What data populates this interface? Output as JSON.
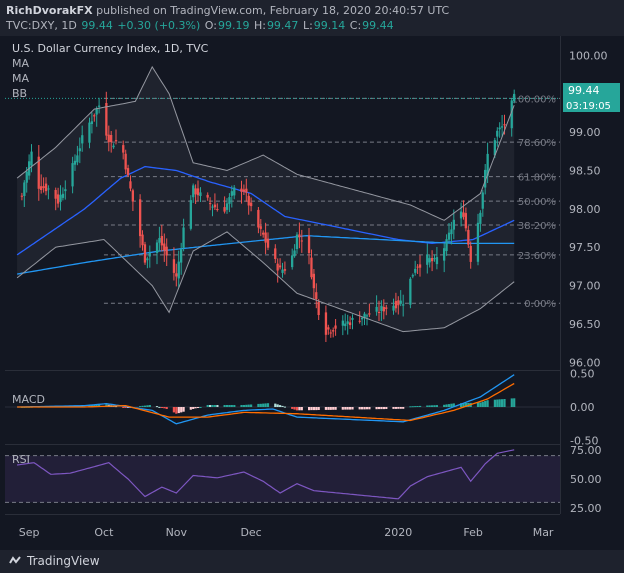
{
  "header": {
    "author": "RichDvorakFX",
    "published_text": "published on TradingView.com, February 18, 2020 20:40:57 UTC",
    "symbol": "TVC:DXY, 1D",
    "last": "99.44",
    "change": "+0.30 (+0.3%)",
    "o_label": "O:",
    "o_value": "99.19",
    "h_label": "H:",
    "h_value": "99.47",
    "l_label": "L:",
    "l_value": "99.14",
    "c_label": "C:",
    "c_value": "99.44"
  },
  "legend": {
    "title": "U.S. Dollar Currency Index, 1D, TVC",
    "indicators": [
      "MA",
      "MA",
      "BB"
    ]
  },
  "price_scale": {
    "ticks": [
      "100.00",
      "99.50",
      "99.00",
      "98.50",
      "98.00",
      "97.50",
      "97.00",
      "96.50",
      "96.00"
    ],
    "last_price_label": "99.44",
    "countdown_label": "03:19:05"
  },
  "fib_labels": [
    "100.00%",
    "78.60%",
    "61.80%",
    "50.00%",
    "38.20%",
    "23.60%",
    "0.00%"
  ],
  "macd": {
    "label": "MACD",
    "ticks": [
      "0.50",
      "0.00",
      "-0.50"
    ]
  },
  "rsi": {
    "label": "RSI",
    "ticks": [
      "75.00",
      "50.00",
      "25.00"
    ]
  },
  "time_axis": {
    "labels": [
      "Sep",
      "Oct",
      "Nov",
      "Dec",
      "2020",
      "Feb",
      "Mar"
    ]
  },
  "footer": {
    "brand": "TradingView"
  },
  "colors": {
    "background": "#131722",
    "panel": "#1e222d",
    "up": "#26a69a",
    "down": "#ef5350",
    "ma_fast": "#2962ff",
    "ma_slow": "#2196f3",
    "bollinger": "#9598a1",
    "macd_line": "#2196f3",
    "signal_line": "#ff6d00",
    "rsi_line": "#7e57c2",
    "rsi_band": "#7e57c2",
    "last_price": "#26a69a"
  },
  "chart_data": {
    "type": "candlestick",
    "title": "U.S. Dollar Currency Index, 1D, TVC",
    "x": [
      "Sep",
      "Oct",
      "Nov",
      "Dec",
      "2020",
      "Feb",
      "Mar"
    ],
    "ylim": [
      95.9,
      100.2
    ],
    "close_anchors": [
      [
        "Aug 27",
        97.8
      ],
      [
        "Aug 30",
        98.35
      ],
      [
        "Sep 3",
        98.85
      ],
      [
        "Sep 5",
        98.3
      ],
      [
        "Sep 10",
        98.25
      ],
      [
        "Sep 13",
        98.1
      ],
      [
        "Sep 18",
        98.45
      ],
      [
        "Sep 24",
        99.0
      ],
      [
        "Sep 30",
        99.35
      ],
      [
        "Oct 2",
        99.0
      ],
      [
        "Oct 4",
        98.85
      ],
      [
        "Oct 8",
        98.9
      ],
      [
        "Oct 11",
        98.4
      ],
      [
        "Oct 18",
        97.35
      ],
      [
        "Oct 24",
        97.6
      ],
      [
        "Oct 31",
        97.1
      ],
      [
        "Nov 5",
        97.95
      ],
      [
        "Nov 8",
        98.25
      ],
      [
        "Nov 14",
        98.1
      ],
      [
        "Nov 20",
        97.95
      ],
      [
        "Nov 26",
        98.3
      ],
      [
        "Nov 29",
        98.25
      ],
      [
        "Dec 3",
        97.8
      ],
      [
        "Dec 6",
        97.65
      ],
      [
        "Dec 10",
        97.35
      ],
      [
        "Dec 13",
        97.2
      ],
      [
        "Dec 17",
        97.25
      ],
      [
        "Dec 20",
        97.65
      ],
      [
        "Dec 24",
        97.6
      ],
      [
        "Dec 27",
        96.95
      ],
      [
        "Dec 31",
        96.4
      ],
      [
        "Jan 3",
        96.8
      ],
      [
        "Jan 8",
        97.25
      ],
      [
        "Jan 13",
        97.35
      ],
      [
        "Jan 16",
        97.3
      ],
      [
        "Jan 21",
        97.55
      ],
      [
        "Jan 24",
        97.85
      ],
      [
        "Jan 28",
        97.95
      ],
      [
        "Jan 31",
        97.35
      ],
      [
        "Feb 4",
        98.0
      ],
      [
        "Feb 7",
        98.7
      ],
      [
        "Feb 11",
        99.0
      ],
      [
        "Feb 14",
        99.1
      ],
      [
        "Feb 18",
        99.44
      ]
    ],
    "moving_average_fast": [
      [
        "Aug 27",
        97.4
      ],
      [
        "Sep 10",
        97.7
      ],
      [
        "Sep 24",
        98.0
      ],
      [
        "Oct 8",
        98.4
      ],
      [
        "Oct 18",
        98.55
      ],
      [
        "Nov 1",
        98.5
      ],
      [
        "Nov 15",
        98.35
      ],
      [
        "Dec 1",
        98.2
      ],
      [
        "Dec 15",
        97.9
      ],
      [
        "Jan 1",
        97.6
      ],
      [
        "Jan 15",
        97.55
      ],
      [
        "Feb 1",
        97.6
      ],
      [
        "Feb 18",
        97.85
      ]
    ],
    "moving_average_slow": [
      [
        "Aug 27",
        97.15
      ],
      [
        "Sep 24",
        97.3
      ],
      [
        "Oct 24",
        97.45
      ],
      [
        "Nov 24",
        97.55
      ],
      [
        "Dec 24",
        97.65
      ],
      [
        "Jan 24",
        97.55
      ],
      [
        "Feb 18",
        97.55
      ]
    ],
    "bollinger_upper": [
      [
        "Aug 27",
        98.4
      ],
      [
        "Sep 12",
        98.8
      ],
      [
        "Sep 28",
        99.3
      ],
      [
        "Oct 14",
        99.4
      ],
      [
        "Oct 21",
        99.85
      ],
      [
        "Oct 28",
        99.5
      ],
      [
        "Nov 8",
        98.6
      ],
      [
        "Nov 22",
        98.5
      ],
      [
        "Dec 6",
        98.7
      ],
      [
        "Dec 20",
        98.45
      ],
      [
        "Jan 6",
        98.05
      ],
      [
        "Jan 20",
        97.85
      ],
      [
        "Feb 4",
        98.2
      ],
      [
        "Feb 18",
        99.35
      ]
    ],
    "bollinger_lower": [
      [
        "Aug 27",
        97.1
      ],
      [
        "Sep 12",
        97.5
      ],
      [
        "Oct 1",
        97.6
      ],
      [
        "Oct 21",
        97.0
      ],
      [
        "Oct 28",
        96.65
      ],
      [
        "Nov 8",
        97.45
      ],
      [
        "Nov 22",
        97.7
      ],
      [
        "Dec 6",
        97.3
      ],
      [
        "Dec 20",
        96.9
      ],
      [
        "Jan 3",
        96.4
      ],
      [
        "Jan 20",
        96.45
      ],
      [
        "Feb 4",
        96.7
      ],
      [
        "Feb 18",
        97.05
      ]
    ],
    "fibonacci_levels": [
      [
        "100.00%",
        99.44
      ],
      [
        "78.60%",
        98.87
      ],
      [
        "61.80%",
        98.42
      ],
      [
        "50.00%",
        98.1
      ],
      [
        "38.20%",
        97.79
      ],
      [
        "23.60%",
        97.4
      ],
      [
        "0.00%",
        96.77
      ]
    ],
    "macd": {
      "ylim": [
        -0.55,
        0.55
      ],
      "macd": [
        [
          "Aug 27",
          0.0
        ],
        [
          "Sep 24",
          0.02
        ],
        [
          "Oct 2",
          0.05
        ],
        [
          "Oct 21",
          -0.05
        ],
        [
          "Oct 31",
          -0.25
        ],
        [
          "Nov 14",
          -0.12
        ],
        [
          "Nov 29",
          -0.05
        ],
        [
          "Dec 10",
          -0.03
        ],
        [
          "Dec 20",
          -0.15
        ],
        [
          "Jan 3",
          -0.22
        ],
        [
          "Jan 20",
          -0.05
        ],
        [
          "Feb 4",
          0.15
        ],
        [
          "Feb 18",
          0.48
        ]
      ],
      "signal": [
        [
          "Aug 27",
          0.0
        ],
        [
          "Sep 24",
          0.0
        ],
        [
          "Oct 10",
          0.02
        ],
        [
          "Oct 28",
          -0.15
        ],
        [
          "Nov 14",
          -0.15
        ],
        [
          "Nov 29",
          -0.08
        ],
        [
          "Dec 20",
          -0.1
        ],
        [
          "Jan 6",
          -0.2
        ],
        [
          "Jan 24",
          -0.05
        ],
        [
          "Feb 7",
          0.12
        ],
        [
          "Feb 18",
          0.35
        ]
      ]
    },
    "rsi": {
      "ylim": [
        20,
        80
      ],
      "levels": [
        70,
        30
      ],
      "values": [
        [
          "Aug 27",
          62
        ],
        [
          "Sep 3",
          64
        ],
        [
          "Sep 10",
          54
        ],
        [
          "Sep 18",
          55
        ],
        [
          "Sep 27",
          60
        ],
        [
          "Oct 3",
          64
        ],
        [
          "Oct 11",
          50
        ],
        [
          "Oct 18",
          35
        ],
        [
          "Oct 25",
          43
        ],
        [
          "Nov 1",
          38
        ],
        [
          "Nov 8",
          53
        ],
        [
          "Nov 18",
          51
        ],
        [
          "Nov 29",
          56
        ],
        [
          "Dec 6",
          48
        ],
        [
          "Dec 13",
          38
        ],
        [
          "Dec 20",
          46
        ],
        [
          "Dec 27",
          40
        ],
        [
          "Jan 1",
          33
        ],
        [
          "Jan 6",
          44
        ],
        [
          "Jan 13",
          52
        ],
        [
          "Jan 20",
          56
        ],
        [
          "Jan 27",
          60
        ],
        [
          "Jan 31",
          48
        ],
        [
          "Feb 6",
          63
        ],
        [
          "Feb 11",
          72
        ],
        [
          "Feb 18",
          75
        ]
      ]
    }
  }
}
